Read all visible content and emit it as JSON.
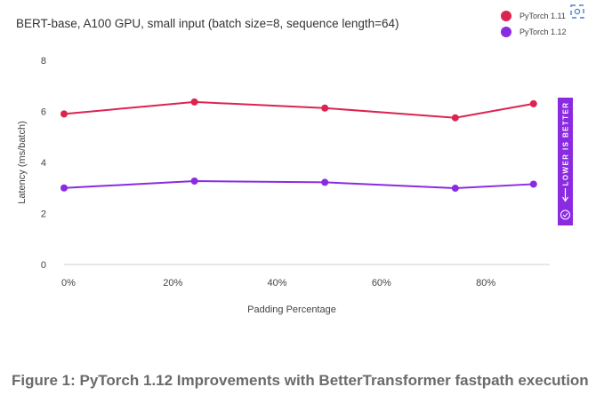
{
  "chart_data": {
    "type": "line",
    "title": "BERT-base, A100 GPU, small input (batch size=8, sequence length=64)",
    "xlabel": "Padding Percentage",
    "ylabel": "Latency (ms/batch)",
    "x": [
      0,
      25,
      50,
      75,
      90
    ],
    "x_ticks": [
      0,
      20,
      40,
      60,
      80
    ],
    "x_tick_labels": [
      "0%",
      "20%",
      "40%",
      "60%",
      "80%"
    ],
    "y_ticks": [
      0,
      2,
      4,
      6,
      8
    ],
    "y_tick_labels": [
      "0",
      "2",
      "4",
      "6",
      "8"
    ],
    "ylim": [
      0,
      8
    ],
    "legend_position": "top-right",
    "series": [
      {
        "name": "PyTorch 1.11",
        "color": "#dc2450",
        "values": [
          5.9,
          6.37,
          6.13,
          5.75,
          6.3
        ]
      },
      {
        "name": "PyTorch 1.12",
        "color": "#8a2be2",
        "values": [
          3.0,
          3.27,
          3.22,
          2.99,
          3.15
        ]
      }
    ],
    "annotation": {
      "text": "LOWER IS BETTER",
      "color": "#8a2be2"
    }
  },
  "caption": "Figure 1: PyTorch 1.12 Improvements with BetterTransformer fastpath execution"
}
